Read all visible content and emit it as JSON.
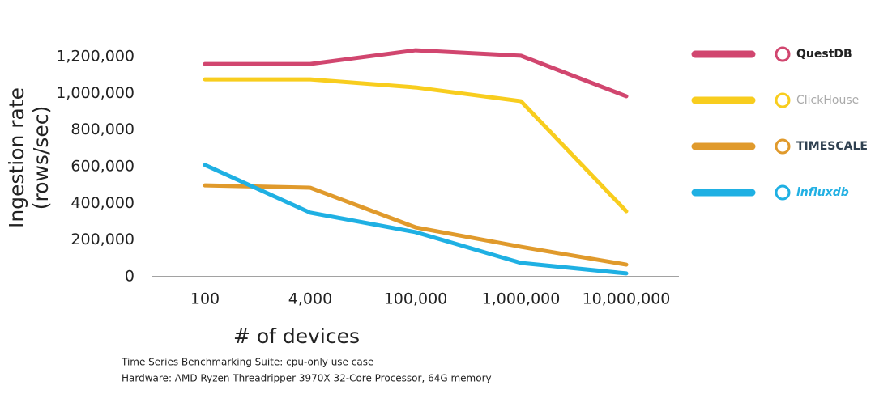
{
  "chart_data": {
    "type": "line",
    "categories": [
      "100",
      "4,000",
      "100,000",
      "1,000,000",
      "10,000,000"
    ],
    "ylim": [
      0,
      1200000
    ],
    "yticks": [
      0,
      {
        "value": 200000,
        "label": "200,000"
      },
      {
        "value": 400000,
        "label": "400,000"
      },
      {
        "value": 600000,
        "label": "600,000"
      },
      {
        "value": 800000,
        "label": "800,000"
      },
      {
        "value": 1000000,
        "label": "1,000,000"
      },
      {
        "value": 1200000,
        "label": "1,200,000"
      }
    ],
    "ylabel": [
      "Ingestion rate",
      "(rows/sec)"
    ],
    "xlabel": "# of devices",
    "notes": [
      "Time Series Benchmarking Suite: cpu-only use case",
      "Hardware: AMD Ryzen Threadripper 3970X 32-Core Processor, 64G memory"
    ],
    "legend": "right",
    "series": [
      {
        "name": "QuestDB",
        "color": "#d1466f",
        "values": [
          1160000,
          1160000,
          1235000,
          1205000,
          984000
        ]
      },
      {
        "name": "ClickHouse",
        "color": "#f8cd1e",
        "values": [
          1076000,
          1076000,
          1032000,
          957000,
          357000
        ]
      },
      {
        "name": "TIMESCALE",
        "color": "#e09a2c",
        "values": [
          498000,
          485000,
          269000,
          163000,
          66000
        ]
      },
      {
        "name": "influxdb",
        "color": "#1fb0e3",
        "values": [
          609000,
          349000,
          243000,
          75000,
          18000
        ]
      }
    ]
  }
}
